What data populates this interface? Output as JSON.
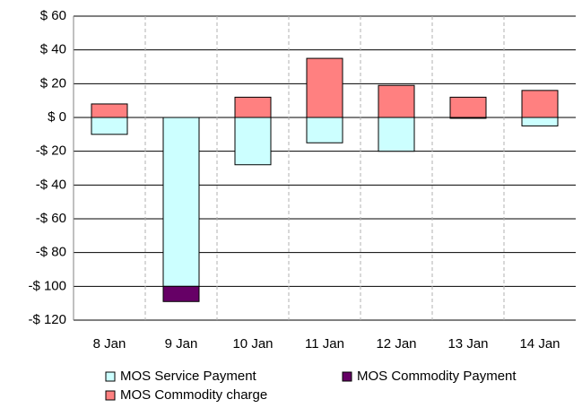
{
  "chart_data": {
    "type": "stacked_bar",
    "categories": [
      "8 Jan",
      "9 Jan",
      "10 Jan",
      "11 Jan",
      "12 Jan",
      "13 Jan",
      "14 Jan"
    ],
    "series": [
      {
        "name": "MOS Service Payment",
        "color": "#ccffff",
        "values": [
          -10,
          -100,
          -28,
          -15,
          -20,
          0,
          -5
        ]
      },
      {
        "name": "MOS Commodity Payment",
        "color": "#660066",
        "values": [
          0,
          -9,
          0,
          0,
          0,
          -0.5,
          0
        ]
      },
      {
        "name": "MOS Commodity charge",
        "color": "#ff8080",
        "values": [
          8,
          0,
          12,
          35,
          19,
          12,
          16
        ]
      }
    ],
    "ylim": [
      -120,
      60
    ],
    "yticks": [
      {
        "value": -120,
        "label": "-$ 120"
      },
      {
        "value": -100,
        "label": "-$ 100"
      },
      {
        "value": -80,
        "label": "-$ 80"
      },
      {
        "value": -60,
        "label": "-$ 60"
      },
      {
        "value": -40,
        "label": "-$ 40"
      },
      {
        "value": -20,
        "label": "-$ 20"
      },
      {
        "value": 0,
        "label": "$ 0"
      },
      {
        "value": 20,
        "label": "$ 20"
      },
      {
        "value": 40,
        "label": "$ 40"
      },
      {
        "value": 60,
        "label": "$ 60"
      }
    ],
    "grid": true,
    "legend": "bottom"
  }
}
